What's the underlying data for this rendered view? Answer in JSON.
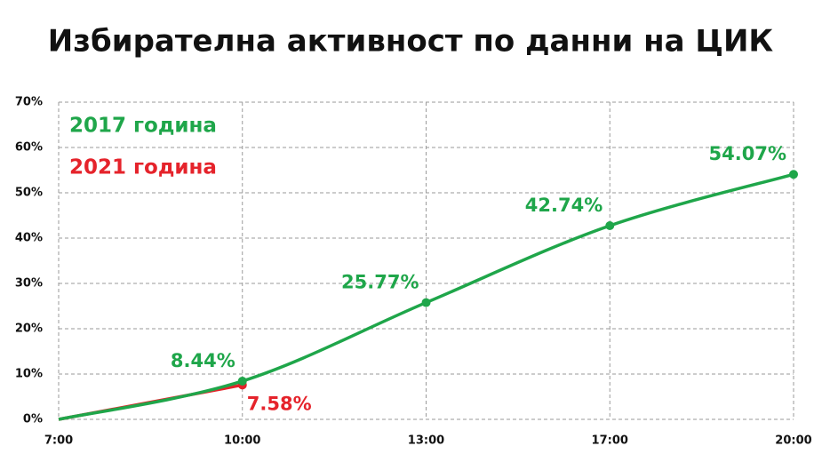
{
  "chart_data": {
    "type": "line",
    "title": "Избирателна активност по данни на ЦИК",
    "categories": [
      "7:00",
      "10:00",
      "13:00",
      "17:00",
      "20:00"
    ],
    "series": [
      {
        "name": "2017 година",
        "color": "#1fa64a",
        "values": [
          0,
          8.44,
          25.77,
          42.74,
          54.07
        ],
        "value_labels": [
          null,
          "8.44%",
          "25.77%",
          "42.74%",
          "54.07%"
        ]
      },
      {
        "name": "2021 година",
        "color": "#e5232b",
        "values": [
          0,
          7.58,
          null,
          null,
          null
        ],
        "value_labels": [
          null,
          "7.58%",
          null,
          null,
          null
        ]
      }
    ],
    "ylim": [
      0,
      70
    ],
    "yticks": [
      {
        "value": 0,
        "label": "0%"
      },
      {
        "value": 10,
        "label": "10%"
      },
      {
        "value": 20,
        "label": "20%"
      },
      {
        "value": 30,
        "label": "30%"
      },
      {
        "value": 40,
        "label": "40%"
      },
      {
        "value": 50,
        "label": "50%"
      },
      {
        "value": 60,
        "label": "60%"
      },
      {
        "value": 70,
        "label": "70%"
      }
    ],
    "grid": true,
    "legend": "upper-left"
  }
}
